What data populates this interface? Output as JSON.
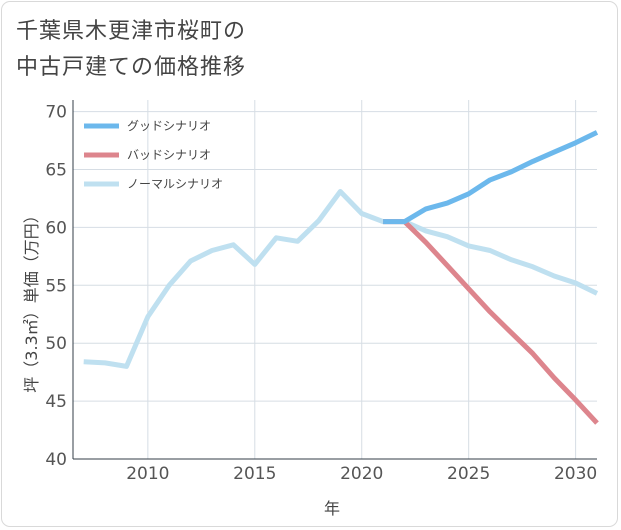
{
  "title": {
    "line1": "千葉県木更津市桜町の",
    "line2": "中古戸建ての価格推移"
  },
  "chart_data": {
    "type": "line",
    "title": "千葉県木更津市桜町の中古戸建ての価格推移",
    "xlabel": "年",
    "ylabel": "坪（3.3㎡）単価（万円）",
    "xlim": [
      2006.5,
      2031
    ],
    "ylim": [
      40,
      71
    ],
    "x_ticks": [
      2010,
      2015,
      2020,
      2025,
      2030
    ],
    "y_ticks": [
      40,
      45,
      50,
      55,
      60,
      65,
      70
    ],
    "grid": true,
    "legend_position": "top-left",
    "series": [
      {
        "name": "グッドシナリオ",
        "color": "#6cb8ec",
        "x": [
          2021,
          2022,
          2023,
          2024,
          2025,
          2026,
          2027,
          2028,
          2029,
          2030,
          2031
        ],
        "y": [
          60.5,
          60.5,
          61.6,
          62.1,
          62.9,
          64.1,
          64.8,
          65.7,
          66.5,
          67.3,
          68.2
        ]
      },
      {
        "name": "バッドシナリオ",
        "color": "#dd858d",
        "x": [
          2021,
          2022,
          2023,
          2024,
          2025,
          2026,
          2027,
          2028,
          2029,
          2030,
          2031
        ],
        "y": [
          60.5,
          60.5,
          58.7,
          56.7,
          54.7,
          52.7,
          50.9,
          49.1,
          47.0,
          45.1,
          43.1
        ]
      },
      {
        "name": "ノーマルシナリオ",
        "color": "#bfe0f0",
        "x": [
          2007,
          2008,
          2009,
          2010,
          2011,
          2012,
          2013,
          2014,
          2015,
          2016,
          2017,
          2018,
          2019,
          2020,
          2021,
          2022,
          2023,
          2024,
          2025,
          2026,
          2027,
          2028,
          2029,
          2030,
          2031
        ],
        "y": [
          48.4,
          48.3,
          48.0,
          52.3,
          55.0,
          57.1,
          58.0,
          58.5,
          56.8,
          59.1,
          58.8,
          60.6,
          63.1,
          61.2,
          60.5,
          60.5,
          59.7,
          59.2,
          58.4,
          58.0,
          57.2,
          56.6,
          55.8,
          55.2,
          54.3
        ]
      }
    ]
  }
}
